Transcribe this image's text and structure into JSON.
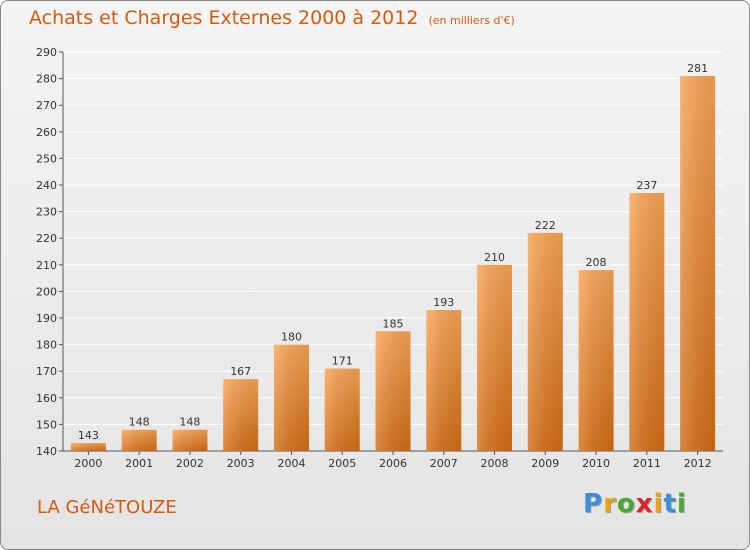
{
  "header": {
    "title": "Achats et Charges Externes 2000 à 2012",
    "subtitle": "(en milliers d'€)"
  },
  "footer": {
    "commune": "LA GéNéTOUZE"
  },
  "logo": {
    "letters": [
      "P",
      "r",
      "o",
      "x",
      "i",
      "t",
      "i"
    ],
    "colors": [
      "#3c8fd6",
      "#e8a21a",
      "#4aa83a",
      "#d8262e",
      "#e8a21a",
      "#3c8fd6",
      "#4aa83a"
    ]
  },
  "chart_data": {
    "type": "bar",
    "title": "Achats et Charges Externes 2000 à 2012",
    "xlabel": "",
    "ylabel": "",
    "categories": [
      "2000",
      "2001",
      "2002",
      "2003",
      "2004",
      "2005",
      "2006",
      "2007",
      "2008",
      "2009",
      "2010",
      "2011",
      "2012"
    ],
    "values": [
      143,
      148,
      148,
      167,
      180,
      171,
      185,
      193,
      210,
      222,
      208,
      237,
      281
    ],
    "ylim": [
      140,
      290
    ],
    "yticks": [
      140,
      150,
      160,
      170,
      180,
      190,
      200,
      210,
      220,
      230,
      240,
      250,
      260,
      270,
      280,
      290
    ],
    "grid": true,
    "bar_color": "#f0902f"
  }
}
